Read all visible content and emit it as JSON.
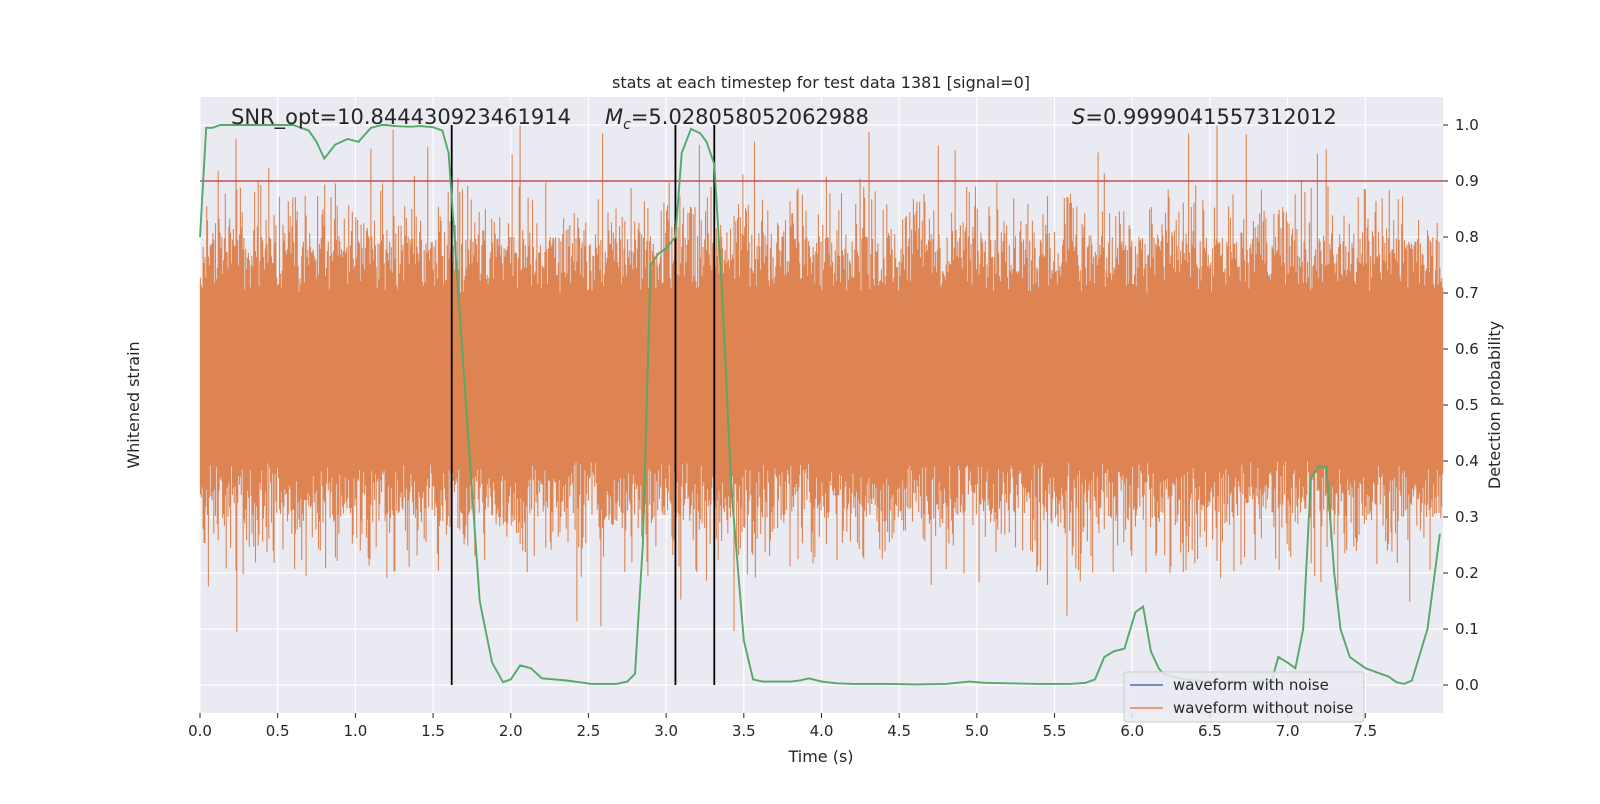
{
  "chart_data": {
    "type": "line",
    "title": "stats at each timestep for test data 1381 [signal=0]",
    "xlabel": "Time (s)",
    "ylabel_left": "Whitened strain",
    "ylabel_right": "Detection probability",
    "xlim": [
      0.0,
      8.0
    ],
    "ylim_right": [
      -0.05,
      1.05
    ],
    "x_ticks": [
      "0.0",
      "0.5",
      "1.0",
      "1.5",
      "2.0",
      "2.5",
      "3.0",
      "3.5",
      "4.0",
      "4.5",
      "5.0",
      "5.5",
      "6.0",
      "6.5",
      "7.0",
      "7.5"
    ],
    "x_tick_values": [
      0.0,
      0.5,
      1.0,
      1.5,
      2.0,
      2.5,
      3.0,
      3.5,
      4.0,
      4.5,
      5.0,
      5.5,
      6.0,
      6.5,
      7.0,
      7.5
    ],
    "y_right_ticks": [
      "0.0",
      "0.1",
      "0.2",
      "0.3",
      "0.4",
      "0.5",
      "0.6",
      "0.7",
      "0.8",
      "0.9",
      "1.0"
    ],
    "y_right_tick_values": [
      0.0,
      0.1,
      0.2,
      0.3,
      0.4,
      0.5,
      0.6,
      0.7,
      0.8,
      0.9,
      1.0
    ],
    "grid": true,
    "legend_position": "lower-right",
    "annotations": {
      "snr": "SNR_opt=10.844430923461914",
      "mc_symbol": "M",
      "mc_sub": "c",
      "mc_value": "=5.028058052062988",
      "s_symbol": "S",
      "s_value": "=0.9999041557312012"
    },
    "threshold": 0.9,
    "vertical_lines": [
      1.62,
      3.06,
      3.31
    ],
    "series": [
      {
        "name": "waveform with noise",
        "color": "#4c72b0"
      },
      {
        "name": "waveform without noise",
        "color": "#dd8452"
      }
    ],
    "strain_envelope": {
      "center": 0.55,
      "inner_low": 0.4,
      "inner_high": 0.7,
      "spike_low": 0.08,
      "spike_high": 1.0
    },
    "probability_series": {
      "color": "#55a868",
      "x": [
        0.0,
        0.04,
        0.08,
        0.13,
        0.2,
        0.3,
        0.4,
        0.5,
        0.6,
        0.7,
        0.75,
        0.8,
        0.87,
        0.95,
        1.02,
        1.1,
        1.17,
        1.2,
        1.25,
        1.35,
        1.42,
        1.5,
        1.56,
        1.6,
        1.65,
        1.7,
        1.75,
        1.8,
        1.88,
        1.95,
        2.0,
        2.06,
        2.13,
        2.2,
        2.28,
        2.36,
        2.44,
        2.52,
        2.6,
        2.68,
        2.75,
        2.8,
        2.85,
        2.9,
        2.95,
        3.0,
        3.06,
        3.1,
        3.16,
        3.22,
        3.26,
        3.31,
        3.36,
        3.42,
        3.5,
        3.56,
        3.62,
        3.7,
        3.8,
        3.86,
        3.92,
        4.0,
        4.1,
        4.2,
        4.4,
        4.6,
        4.8,
        4.95,
        5.05,
        5.2,
        5.4,
        5.6,
        5.7,
        5.76,
        5.82,
        5.88,
        5.95,
        6.02,
        6.07,
        6.12,
        6.17,
        6.2,
        6.3,
        6.4,
        6.5,
        6.6,
        6.7,
        6.8,
        6.9,
        6.94,
        7.0,
        7.05,
        7.1,
        7.15,
        7.2,
        7.25,
        7.3,
        7.34,
        7.4,
        7.5,
        7.55,
        7.6,
        7.65,
        7.7,
        7.75,
        7.8,
        7.9,
        7.98
      ],
      "y": [
        0.8,
        0.995,
        0.995,
        1.0,
        1.0,
        1.0,
        1.0,
        1.0,
        1.0,
        0.99,
        0.97,
        0.94,
        0.965,
        0.975,
        0.97,
        0.995,
        1.0,
        1.0,
        0.998,
        0.997,
        0.998,
        0.996,
        0.99,
        0.95,
        0.75,
        0.55,
        0.35,
        0.15,
        0.04,
        0.005,
        0.01,
        0.035,
        0.03,
        0.012,
        0.01,
        0.008,
        0.005,
        0.002,
        0.002,
        0.002,
        0.006,
        0.02,
        0.25,
        0.75,
        0.77,
        0.78,
        0.8,
        0.95,
        0.993,
        0.985,
        0.97,
        0.93,
        0.7,
        0.35,
        0.08,
        0.01,
        0.006,
        0.006,
        0.006,
        0.008,
        0.012,
        0.006,
        0.003,
        0.002,
        0.002,
        0.001,
        0.002,
        0.006,
        0.004,
        0.003,
        0.002,
        0.002,
        0.004,
        0.01,
        0.05,
        0.06,
        0.065,
        0.13,
        0.14,
        0.06,
        0.03,
        0.02,
        0.012,
        0.008,
        0.006,
        0.004,
        0.004,
        0.006,
        0.01,
        0.05,
        0.04,
        0.03,
        0.1,
        0.37,
        0.39,
        0.39,
        0.2,
        0.1,
        0.05,
        0.03,
        0.025,
        0.02,
        0.015,
        0.005,
        0.002,
        0.008,
        0.1,
        0.27
      ]
    }
  }
}
